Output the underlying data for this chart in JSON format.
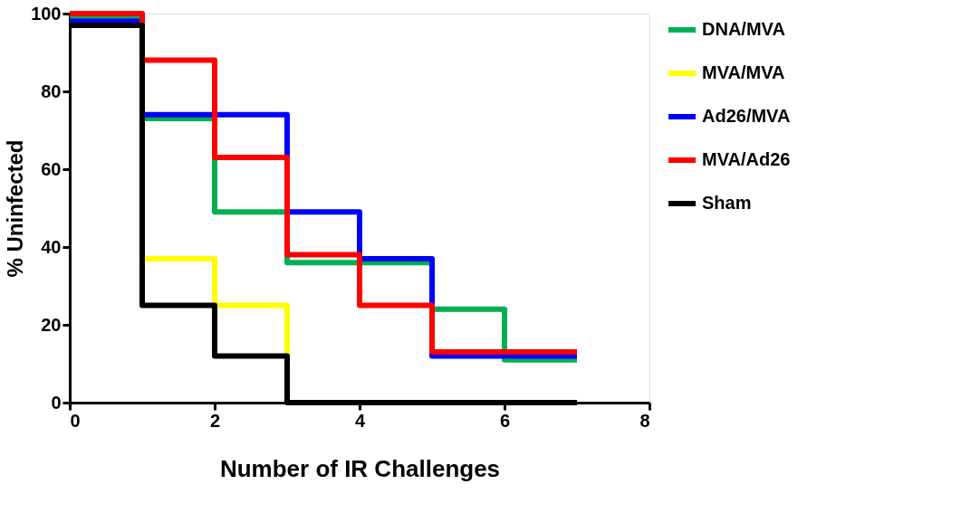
{
  "chart_data": {
    "type": "step",
    "xlabel": "Number of IR Challenges",
    "ylabel": "% Uninfected",
    "x": [
      0,
      1,
      2,
      3,
      4,
      5,
      6,
      7
    ],
    "series": [
      {
        "name": "DNA/MVA",
        "color": "#00b050",
        "values": [
          99,
          73,
          49,
          36,
          36,
          24,
          11,
          11
        ]
      },
      {
        "name": "MVA/MVA",
        "color": "#ffff00",
        "values": [
          null,
          37,
          25,
          0,
          null,
          null,
          null,
          null
        ]
      },
      {
        "name": "Ad26/MVA",
        "color": "#0000ff",
        "values": [
          98,
          74,
          74,
          49,
          37,
          12,
          12,
          12
        ]
      },
      {
        "name": "MVA/Ad26",
        "color": "#ff0000",
        "values": [
          100,
          88,
          63,
          38,
          25,
          13,
          13,
          13
        ]
      },
      {
        "name": "Sham",
        "color": "#000000",
        "values": [
          97,
          25,
          12,
          0,
          0,
          0,
          0,
          0
        ]
      }
    ],
    "xlim": [
      0,
      8
    ],
    "xticks": [
      0,
      2,
      4,
      6,
      8
    ],
    "ylim": [
      0,
      100
    ],
    "yticks": [
      0,
      20,
      40,
      60,
      80,
      100
    ],
    "grid": false,
    "legend": "right",
    "line_style": "solid"
  }
}
